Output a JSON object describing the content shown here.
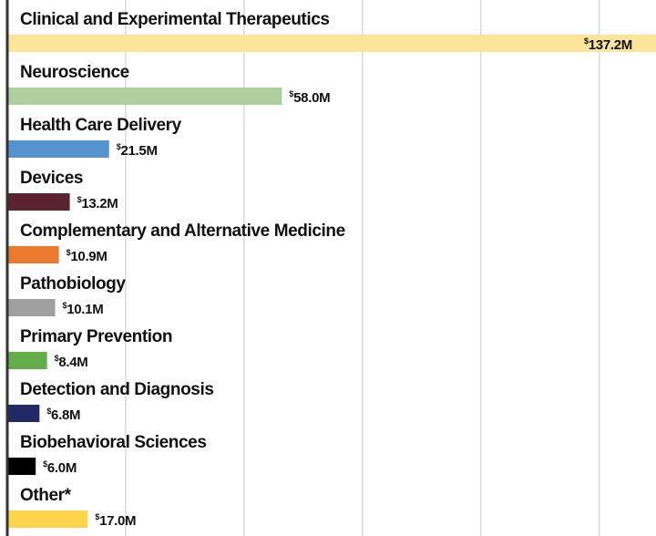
{
  "chart_data": {
    "type": "hbar",
    "categories": [
      "Clinical and Experimental Therapeutics",
      "Neuroscience",
      "Health Care Delivery",
      "Devices",
      "Complementary and Alternative Medicine",
      "Pathobiology",
      "Primary Prevention",
      "Detection and Diagnosis",
      "Biobehavioral Sciences",
      "Other*"
    ],
    "values": [
      137.2,
      58.0,
      21.5,
      13.2,
      10.9,
      10.1,
      8.4,
      6.8,
      6.0,
      17.0
    ],
    "value_labels": [
      "$137.2M",
      "$58.0M",
      "$21.5M",
      "$13.2M",
      "$10.9M",
      "$10.1M",
      "$8.4M",
      "$6.8M",
      "$6.0M",
      "$17.0M"
    ],
    "colors": [
      "#fde49a",
      "#aed09e",
      "#5593d0",
      "#5a2332",
      "#ec7a2e",
      "#a0a0a0",
      "#63ad4a",
      "#222a66",
      "#000000",
      "#fdd44a"
    ],
    "xlim": [
      0,
      137
    ],
    "xticks": [
      25,
      50,
      75,
      100,
      125
    ],
    "grid": true
  }
}
